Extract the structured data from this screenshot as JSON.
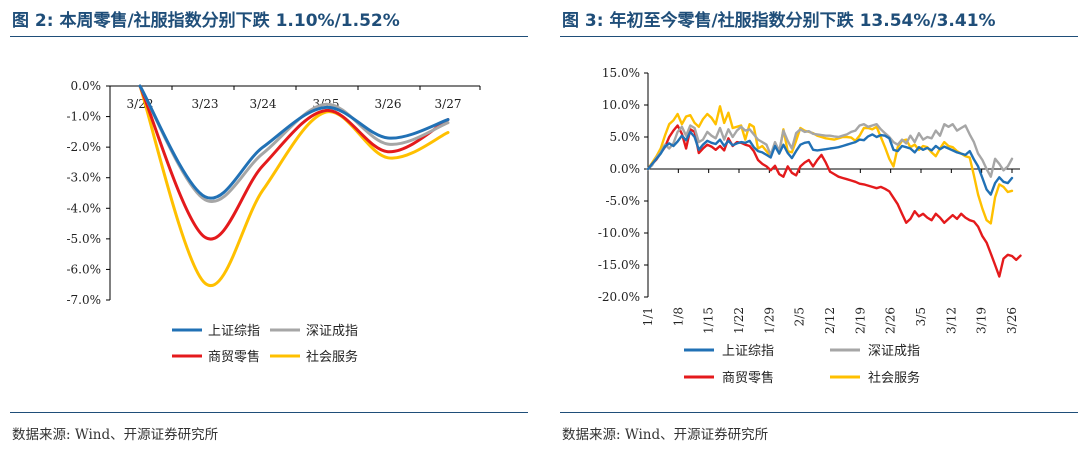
{
  "left_panel": {
    "title": "图 2:  本周零售/社服指数分别下跌 1.10%/1.52%",
    "source": "数据来源:  Wind、开源证券研究所"
  },
  "right_panel": {
    "title": "图 3:  年初至今零售/社服指数分别下跌 13.54%/3.41%",
    "source": "数据来源:  Wind、开源证券研究所"
  },
  "chart_data": [
    {
      "type": "line",
      "title": "本周零售/社服指数分别下跌 1.10%/1.52%",
      "xlabel": "",
      "ylabel": "",
      "ylim": [
        -7.0,
        0.0
      ],
      "y_ticks": [
        0,
        -1,
        -2,
        -3,
        -4,
        -5,
        -6,
        -7
      ],
      "y_tick_labels": [
        "0.0%",
        "-1.0%",
        "-2.0%",
        "-3.0%",
        "-4.0%",
        "-5.0%",
        "-6.0%",
        "-7.0%"
      ],
      "categories": [
        "3/22",
        "3/23",
        "3/24",
        "3/25",
        "3/26",
        "3/27"
      ],
      "legend": {
        "columns": 2,
        "position": "bottom-center"
      },
      "series": [
        {
          "name": "上证综指",
          "color": "#2171b5",
          "values": [
            0.0,
            -3.62,
            -2.0,
            -0.7,
            -1.7,
            -1.1
          ]
        },
        {
          "name": "深证成指",
          "color": "#a6a6a6",
          "values": [
            0.0,
            -3.72,
            -2.2,
            -0.6,
            -1.9,
            -1.2
          ]
        },
        {
          "name": "商贸零售",
          "color": "#e41a1c",
          "values": [
            0.0,
            -4.95,
            -2.6,
            -0.8,
            -2.15,
            -1.1
          ]
        },
        {
          "name": "社会服务",
          "color": "#ffc000",
          "values": [
            0.0,
            -6.45,
            -3.4,
            -0.85,
            -2.35,
            -1.52
          ]
        }
      ]
    },
    {
      "type": "line",
      "title": "年初至今零售/社服指数分别下跌 13.54%/3.41%",
      "xlabel": "",
      "ylabel": "",
      "ylim": [
        -20.0,
        15.0
      ],
      "y_ticks": [
        15,
        10,
        5,
        0,
        -5,
        -10,
        -15,
        -20
      ],
      "y_tick_labels": [
        "15.0%",
        "10.0%",
        "5.0%",
        "0.0%",
        "-5.0%",
        "-10.0%",
        "-15.0%",
        "-20.0%"
      ],
      "x_tick_labels": [
        "1/1",
        "1/8",
        "1/15",
        "1/22",
        "1/29",
        "2/5",
        "2/12",
        "2/19",
        "2/26",
        "3/5",
        "3/12",
        "3/19",
        "3/26"
      ],
      "legend": {
        "columns": 2,
        "position": "bottom-center"
      },
      "series": [
        {
          "name": "上证综指",
          "color": "#2171b5",
          "values": [
            0.0,
            0.8,
            1.6,
            2.4,
            3.5,
            4.0,
            3.6,
            4.3,
            5.2,
            4.5,
            5.8,
            5.0,
            3.0,
            3.8,
            4.4,
            4.1,
            3.9,
            4.6,
            3.6,
            4.4,
            3.7,
            4.0,
            4.2,
            4.1,
            4.4,
            3.4,
            2.8,
            2.6,
            2.2,
            1.8,
            3.6,
            2.4,
            3.8,
            2.5,
            1.7,
            2.8,
            3.8,
            4.1,
            4.2,
            3.0,
            2.9,
            3.0,
            3.1,
            3.2,
            3.3,
            3.4,
            3.6,
            3.8,
            4.0,
            4.2,
            4.6,
            4.5,
            5.1,
            5.4,
            5.0,
            5.3,
            5.2,
            4.8,
            3.0,
            2.8,
            3.6,
            3.4,
            3.2,
            2.6,
            3.4,
            3.0,
            3.3,
            2.9,
            3.6,
            3.1,
            3.5,
            3.2,
            2.9,
            2.6,
            2.4,
            2.2,
            2.8,
            1.5,
            0.4,
            -1.4,
            -3.2,
            -4.0,
            -2.2,
            -1.3,
            -2.0,
            -2.2,
            -1.4
          ]
        },
        {
          "name": "深证成指",
          "color": "#a6a6a6",
          "values": [
            0.0,
            0.6,
            1.8,
            2.6,
            3.8,
            3.2,
            4.0,
            5.8,
            6.6,
            5.2,
            6.8,
            6.4,
            4.2,
            4.6,
            5.8,
            5.2,
            4.8,
            6.4,
            4.6,
            6.2,
            5.0,
            6.0,
            6.6,
            6.0,
            6.2,
            5.4,
            4.6,
            4.2,
            3.8,
            2.2,
            4.2,
            2.8,
            6.0,
            4.4,
            3.2,
            5.6,
            6.2,
            5.8,
            5.9,
            5.5,
            5.4,
            5.3,
            5.2,
            5.2,
            5.1,
            5.0,
            5.2,
            5.4,
            5.8,
            6.0,
            6.8,
            7.0,
            6.6,
            6.8,
            7.0,
            6.2,
            5.6,
            5.0,
            4.2,
            3.8,
            4.6,
            4.0,
            5.2,
            4.2,
            5.6,
            4.6,
            5.0,
            4.8,
            6.0,
            5.2,
            7.0,
            6.6,
            7.0,
            6.0,
            6.4,
            6.8,
            5.4,
            4.2,
            2.4,
            1.4,
            0.0,
            -1.2,
            1.6,
            0.8,
            -0.2,
            0.4,
            1.6
          ]
        },
        {
          "name": "商贸零售",
          "color": "#e41a1c",
          "values": [
            0.0,
            0.8,
            1.5,
            2.5,
            3.4,
            5.0,
            6.0,
            6.8,
            5.5,
            3.2,
            6.2,
            5.8,
            2.5,
            3.2,
            3.8,
            3.5,
            3.0,
            3.6,
            2.9,
            4.8,
            3.6,
            4.2,
            4.1,
            3.8,
            3.6,
            2.8,
            1.4,
            0.8,
            0.4,
            -0.2,
            0.5,
            -0.8,
            -1.2,
            0.4,
            -0.6,
            -1.0,
            0.4,
            1.0,
            1.4,
            0.4,
            1.4,
            2.2,
            1.0,
            -0.4,
            -0.8,
            -1.2,
            -1.4,
            -1.6,
            -1.8,
            -2.0,
            -2.3,
            -2.4,
            -2.6,
            -2.8,
            -3.0,
            -2.8,
            -3.1,
            -3.5,
            -4.5,
            -5.5,
            -7.0,
            -8.4,
            -7.8,
            -6.6,
            -7.4,
            -7.0,
            -7.6,
            -8.0,
            -7.0,
            -7.6,
            -8.4,
            -7.8,
            -7.2,
            -7.8,
            -7.0,
            -7.6,
            -8.0,
            -8.2,
            -9.0,
            -10.5,
            -11.5,
            -13.2,
            -15.0,
            -16.8,
            -14.0,
            -13.4,
            -13.6,
            -14.2,
            -13.54
          ]
        },
        {
          "name": "社会服务",
          "color": "#ffc000",
          "values": [
            0.0,
            1.0,
            2.0,
            3.2,
            5.2,
            7.0,
            7.6,
            8.6,
            7.0,
            8.2,
            8.4,
            7.2,
            6.6,
            7.8,
            8.6,
            8.0,
            7.0,
            9.8,
            7.2,
            8.8,
            6.4,
            6.6,
            6.8,
            4.6,
            7.0,
            6.6,
            3.2,
            3.6,
            2.8,
            2.0,
            4.0,
            2.4,
            6.2,
            2.8,
            2.6,
            4.4,
            6.4,
            6.0,
            5.8,
            5.6,
            5.2,
            5.0,
            4.8,
            4.7,
            4.6,
            4.8,
            5.0,
            5.0,
            4.9,
            4.4,
            5.2,
            6.4,
            6.4,
            6.2,
            6.6,
            5.0,
            3.4,
            1.6,
            0.4,
            3.4,
            4.4,
            4.6,
            3.4,
            3.8,
            3.0,
            3.6,
            3.4,
            2.6,
            2.0,
            3.2,
            4.2,
            3.6,
            3.4,
            2.8,
            2.4,
            2.0,
            1.8,
            -1.0,
            -4.0,
            -6.2,
            -8.0,
            -8.5,
            -4.4,
            -2.4,
            -2.8,
            -3.6,
            -3.41
          ]
        }
      ]
    }
  ]
}
